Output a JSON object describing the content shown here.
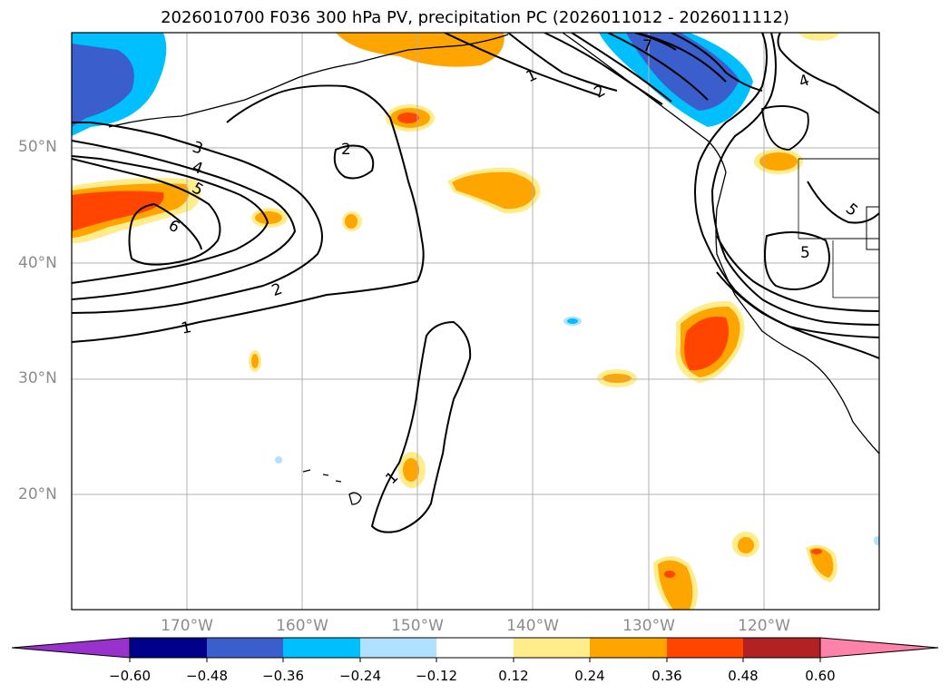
{
  "title": "2026010700 F036 300 hPa PV, precipitation PC (2026011012 - 2026011112)",
  "lat_labels": [
    "50°N",
    "40°N",
    "30°N",
    "20°N"
  ],
  "lon_labels": [
    "170°W",
    "160°W",
    "150°W",
    "140°W",
    "130°W",
    "120°W"
  ],
  "contour_labels": [
    "1",
    "2",
    "3",
    "4",
    "5",
    "6",
    "7"
  ],
  "colorbar": {
    "ticks": [
      "−0.60",
      "−0.48",
      "−0.36",
      "−0.24",
      "−0.12",
      "0.12",
      "0.24",
      "0.36",
      "0.48",
      "0.60"
    ],
    "colors": [
      "#9932cc",
      "#00008b",
      "#3a5fcd",
      "#00bfff",
      "#b0e2ff",
      "#ffffff",
      "#ffec8b",
      "#ffa500",
      "#ff4500",
      "#b22222",
      "#ff82ab"
    ]
  },
  "colors": {
    "land_outline": "#000000",
    "grid": "#b0b0b0",
    "contour": "#000000"
  }
}
